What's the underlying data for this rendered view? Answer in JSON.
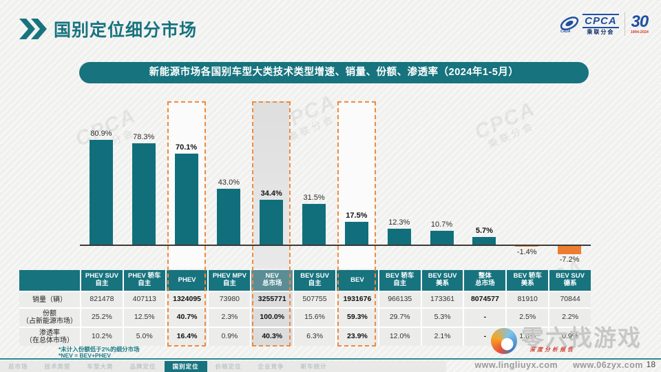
{
  "header": {
    "title": "国别定位细分市场"
  },
  "logo": {
    "cpca": "CPCA",
    "cpca_sub": "乘联分会",
    "anniversary": "30",
    "anniversary_years": "1994-2024"
  },
  "banner": {
    "text": "新能源市场各国别车型大类技术类型增速、销量、份额、渗透率（2024年1-5月）"
  },
  "chart_data": {
    "type": "bar",
    "title": "新能源市场各国别车型大类技术类型增速、销量、份额、渗透率（2024年1-5月）",
    "categories": [
      "PHEV SUV 自主",
      "PHEV 轿车 自主",
      "PHEV",
      "PHEV MPV 自主",
      "NEV 总市场",
      "BEV SUV 自主",
      "BEV",
      "BEV 轿车 自主",
      "BEV SUV 美系",
      "整体 总市场",
      "BEV 轿车 美系",
      "BEV SUV 德系"
    ],
    "values": [
      80.9,
      78.3,
      70.1,
      43.0,
      34.4,
      31.5,
      17.5,
      12.3,
      10.7,
      5.7,
      -1.4,
      -7.2
    ],
    "labels": [
      "80.9%",
      "78.3%",
      "70.1%",
      "43.0%",
      "34.4%",
      "31.5%",
      "17.5%",
      "12.3%",
      "10.7%",
      "5.7%",
      "-1.4%",
      "-7.2%"
    ],
    "bold_labels": [
      false,
      false,
      true,
      false,
      true,
      false,
      true,
      false,
      false,
      true,
      false,
      false
    ],
    "highlighted_dashed_columns": [
      "PHEV",
      "NEV 总市场",
      "BEV"
    ],
    "shaded_column": "NEV 总市场",
    "bar_color": "#116f7c",
    "negative_color": "#ed7d31",
    "ylim": [
      -10,
      90
    ],
    "grid": false,
    "legend": false
  },
  "table": {
    "columns": [
      {
        "lines": [
          "PHEV SUV",
          "自主"
        ],
        "bold": false,
        "box": false,
        "shaded": false
      },
      {
        "lines": [
          "PHEV 轿车",
          "自主"
        ],
        "bold": false,
        "box": false,
        "shaded": false
      },
      {
        "lines": [
          "PHEV"
        ],
        "bold": true,
        "box": true,
        "shaded": false
      },
      {
        "lines": [
          "PHEV MPV",
          "自主"
        ],
        "bold": false,
        "box": false,
        "shaded": false
      },
      {
        "lines": [
          "NEV",
          "总市场"
        ],
        "bold": true,
        "box": true,
        "shaded": true
      },
      {
        "lines": [
          "BEV SUV",
          "自主"
        ],
        "bold": false,
        "box": false,
        "shaded": false
      },
      {
        "lines": [
          "BEV"
        ],
        "bold": true,
        "box": true,
        "shaded": false
      },
      {
        "lines": [
          "BEV 轿车",
          "自主"
        ],
        "bold": false,
        "box": false,
        "shaded": false
      },
      {
        "lines": [
          "BEV SUV",
          "美系"
        ],
        "bold": false,
        "box": false,
        "shaded": false
      },
      {
        "lines": [
          "整体",
          "总市场"
        ],
        "bold": true,
        "box": false,
        "shaded": false
      },
      {
        "lines": [
          "BEV 轿车",
          "美系"
        ],
        "bold": false,
        "box": false,
        "shaded": false
      },
      {
        "lines": [
          "BEV SUV",
          "德系"
        ],
        "bold": false,
        "box": false,
        "shaded": false
      }
    ],
    "rows": [
      {
        "label_lines": [
          "销量（辆）"
        ],
        "values": [
          "821478",
          "407113",
          "1324095",
          "73980",
          "3255771",
          "507755",
          "1931676",
          "966135",
          "173361",
          "8074577",
          "81910",
          "70844"
        ]
      },
      {
        "label_lines": [
          "份额",
          "（占新能源市场）"
        ],
        "values": [
          "25.2%",
          "12.5%",
          "40.7%",
          "2.3%",
          "100.0%",
          "15.6%",
          "59.3%",
          "29.7%",
          "5.3%",
          "-",
          "2.5%",
          "2.2%"
        ]
      },
      {
        "label_lines": [
          "渗透率",
          "（在总体市场）"
        ],
        "values": [
          "10.2%",
          "5.0%",
          "16.4%",
          "0.9%",
          "40.3%",
          "6.3%",
          "23.9%",
          "12.0%",
          "2.1%",
          "-",
          "1.0%",
          "0.9%"
        ]
      }
    ]
  },
  "footnotes": [
    "*未计入份额低于2%的细分市场",
    "*NEV = BEV+PHEV"
  ],
  "bottom_nav": {
    "items": [
      "总市场",
      "技术类型",
      "车型大类",
      "品牌定位",
      "国别定位",
      "价格定位",
      "企业竞争",
      "新车统计"
    ],
    "active": "国别定位"
  },
  "footer": {
    "url1": "www.lingliuyx.com",
    "url2": "www.06zyx.com",
    "page": "18",
    "site_watermark": "零六找游戏",
    "site_watermark_sub": "深度分析报告"
  },
  "colors": {
    "accent_teal": "#17737e",
    "accent_orange": "#ed7d31",
    "dashed_box": "#f08a3c"
  }
}
